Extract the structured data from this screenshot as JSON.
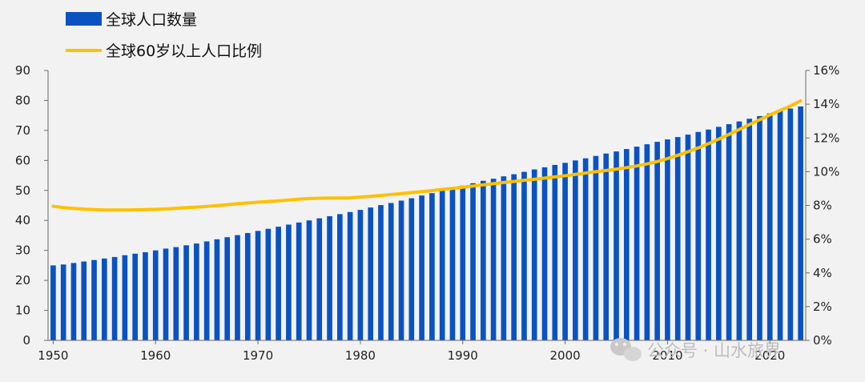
{
  "chart_data": {
    "type": "bar+line",
    "legend": [
      {
        "label": "全球人口数量",
        "kind": "bar",
        "color": "#0a52c2"
      },
      {
        "label": "全球60岁以上人口比例",
        "kind": "line",
        "color": "#ffc000"
      }
    ],
    "x": [
      1950,
      1951,
      1952,
      1953,
      1954,
      1955,
      1956,
      1957,
      1958,
      1959,
      1960,
      1961,
      1962,
      1963,
      1964,
      1965,
      1966,
      1967,
      1968,
      1969,
      1970,
      1971,
      1972,
      1973,
      1974,
      1975,
      1976,
      1977,
      1978,
      1979,
      1980,
      1981,
      1982,
      1983,
      1984,
      1985,
      1986,
      1987,
      1988,
      1989,
      1990,
      1991,
      1992,
      1993,
      1994,
      1995,
      1996,
      1997,
      1998,
      1999,
      2000,
      2001,
      2002,
      2003,
      2004,
      2005,
      2006,
      2007,
      2008,
      2009,
      2010,
      2011,
      2012,
      2013,
      2014,
      2015,
      2016,
      2017,
      2018,
      2019,
      2020,
      2021,
      2022,
      2023
    ],
    "xlim": [
      1950,
      2023
    ],
    "x_ticks": [
      "1950",
      "1960",
      "1970",
      "1980",
      "1990",
      "2000",
      "2010",
      "2020"
    ],
    "series": [
      {
        "name": "全球人口数量",
        "axis": "left",
        "values": [
          25.0,
          25.3,
          25.8,
          26.3,
          26.8,
          27.3,
          27.8,
          28.4,
          28.9,
          29.4,
          30.0,
          30.6,
          31.1,
          31.7,
          32.3,
          33.0,
          33.7,
          34.4,
          35.1,
          35.8,
          36.5,
          37.2,
          37.9,
          38.6,
          39.3,
          40.0,
          40.7,
          41.4,
          42.1,
          42.8,
          43.5,
          44.3,
          45.1,
          45.8,
          46.6,
          47.4,
          48.3,
          49.1,
          49.9,
          50.8,
          51.6,
          52.4,
          53.2,
          53.9,
          54.7,
          55.4,
          56.2,
          57.0,
          57.7,
          58.5,
          59.2,
          60.0,
          60.7,
          61.5,
          62.3,
          63.0,
          63.8,
          64.6,
          65.4,
          66.2,
          67.0,
          67.8,
          68.6,
          69.5,
          70.3,
          71.2,
          72.1,
          73.0,
          73.9,
          74.8,
          75.7,
          76.5,
          77.3,
          78.0
        ]
      },
      {
        "name": "全球60岁以上人口比例",
        "axis": "right",
        "values": [
          0.0795,
          0.0787,
          0.0782,
          0.0778,
          0.0775,
          0.0773,
          0.0773,
          0.0773,
          0.0774,
          0.0775,
          0.0777,
          0.0779,
          0.0783,
          0.0787,
          0.079,
          0.0794,
          0.0799,
          0.0804,
          0.081,
          0.0815,
          0.0819,
          0.0823,
          0.0827,
          0.0832,
          0.0837,
          0.0841,
          0.0843,
          0.0844,
          0.0844,
          0.0845,
          0.0849,
          0.0854,
          0.0859,
          0.0865,
          0.087,
          0.0876,
          0.0882,
          0.0888,
          0.0895,
          0.0901,
          0.0908,
          0.0915,
          0.0922,
          0.0929,
          0.0936,
          0.0942,
          0.0949,
          0.0955,
          0.0962,
          0.0969,
          0.0976,
          0.0984,
          0.0992,
          0.1,
          0.1007,
          0.1015,
          0.1024,
          0.1034,
          0.1046,
          0.106,
          0.1078,
          0.1097,
          0.1118,
          0.1141,
          0.1166,
          0.1193,
          0.1221,
          0.125,
          0.1279,
          0.1308,
          0.1337,
          0.1363,
          0.1389,
          0.142
        ]
      }
    ],
    "y_left": {
      "ylim": [
        0,
        90
      ],
      "ticks": [
        "0",
        "10",
        "20",
        "30",
        "40",
        "50",
        "60",
        "70",
        "80",
        "90"
      ]
    },
    "y_right": {
      "ylim": [
        0,
        0.16
      ],
      "ticks": [
        "0%",
        "2%",
        "4%",
        "6%",
        "8%",
        "10%",
        "12%",
        "14%",
        "16%"
      ]
    },
    "grid": false,
    "legend_position": "top-left"
  },
  "watermark": {
    "text": "公众号 · 山水旅界",
    "icon": "wechat-icon"
  }
}
